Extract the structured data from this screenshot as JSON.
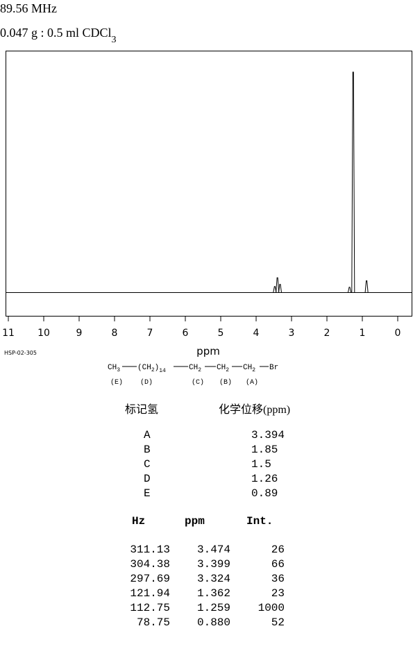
{
  "header": {
    "frequency": "89.56 MHz",
    "sample": {
      "text": "0.047 g : 0.5 ml CDCl",
      "subscript": "3"
    }
  },
  "chart_data": {
    "type": "line",
    "xlabel": "ppm",
    "code": "HSP-02-305",
    "xlim": [
      11,
      0
    ],
    "xticks": [
      11,
      10,
      9,
      8,
      7,
      6,
      5,
      4,
      3,
      2,
      1,
      0
    ],
    "ylim": [
      -107,
      1094
    ],
    "x": [
      3.474,
      3.399,
      3.324,
      1.362,
      1.259,
      0.88
    ],
    "values": [
      26,
      66,
      36,
      23,
      1000,
      52
    ],
    "color": "#000000"
  },
  "structure": {
    "groups": [
      {
        "text": "CH",
        "sub": "3",
        "label": "(E)"
      },
      {
        "text": "(CH",
        "sub": "2",
        "close": ")",
        "sub2": "14",
        "label": "(D)"
      },
      {
        "text": "CH",
        "sub": "2",
        "label": "(C)"
      },
      {
        "text": "CH",
        "sub": "2",
        "label": "(B)"
      },
      {
        "text": "CH",
        "sub": "2",
        "label": "(A)"
      },
      {
        "text": "Br"
      }
    ]
  },
  "assignment": {
    "headers": [
      "标记氢",
      "化学位移(ppm)"
    ],
    "rows": [
      [
        "A",
        "3.394"
      ],
      [
        "B",
        "1.85"
      ],
      [
        "C",
        "1.5"
      ],
      [
        "D",
        "1.26"
      ],
      [
        "E",
        "0.89"
      ]
    ]
  },
  "peak_table": {
    "headers": [
      "Hz",
      "ppm",
      "Int."
    ],
    "rows": [
      [
        "311.13",
        "3.474",
        "26"
      ],
      [
        "304.38",
        "3.399",
        "66"
      ],
      [
        "297.69",
        "3.324",
        "36"
      ],
      [
        "121.94",
        "1.362",
        "23"
      ],
      [
        "112.75",
        "1.259",
        "1000"
      ],
      [
        "78.75",
        "0.880",
        "52"
      ]
    ]
  }
}
